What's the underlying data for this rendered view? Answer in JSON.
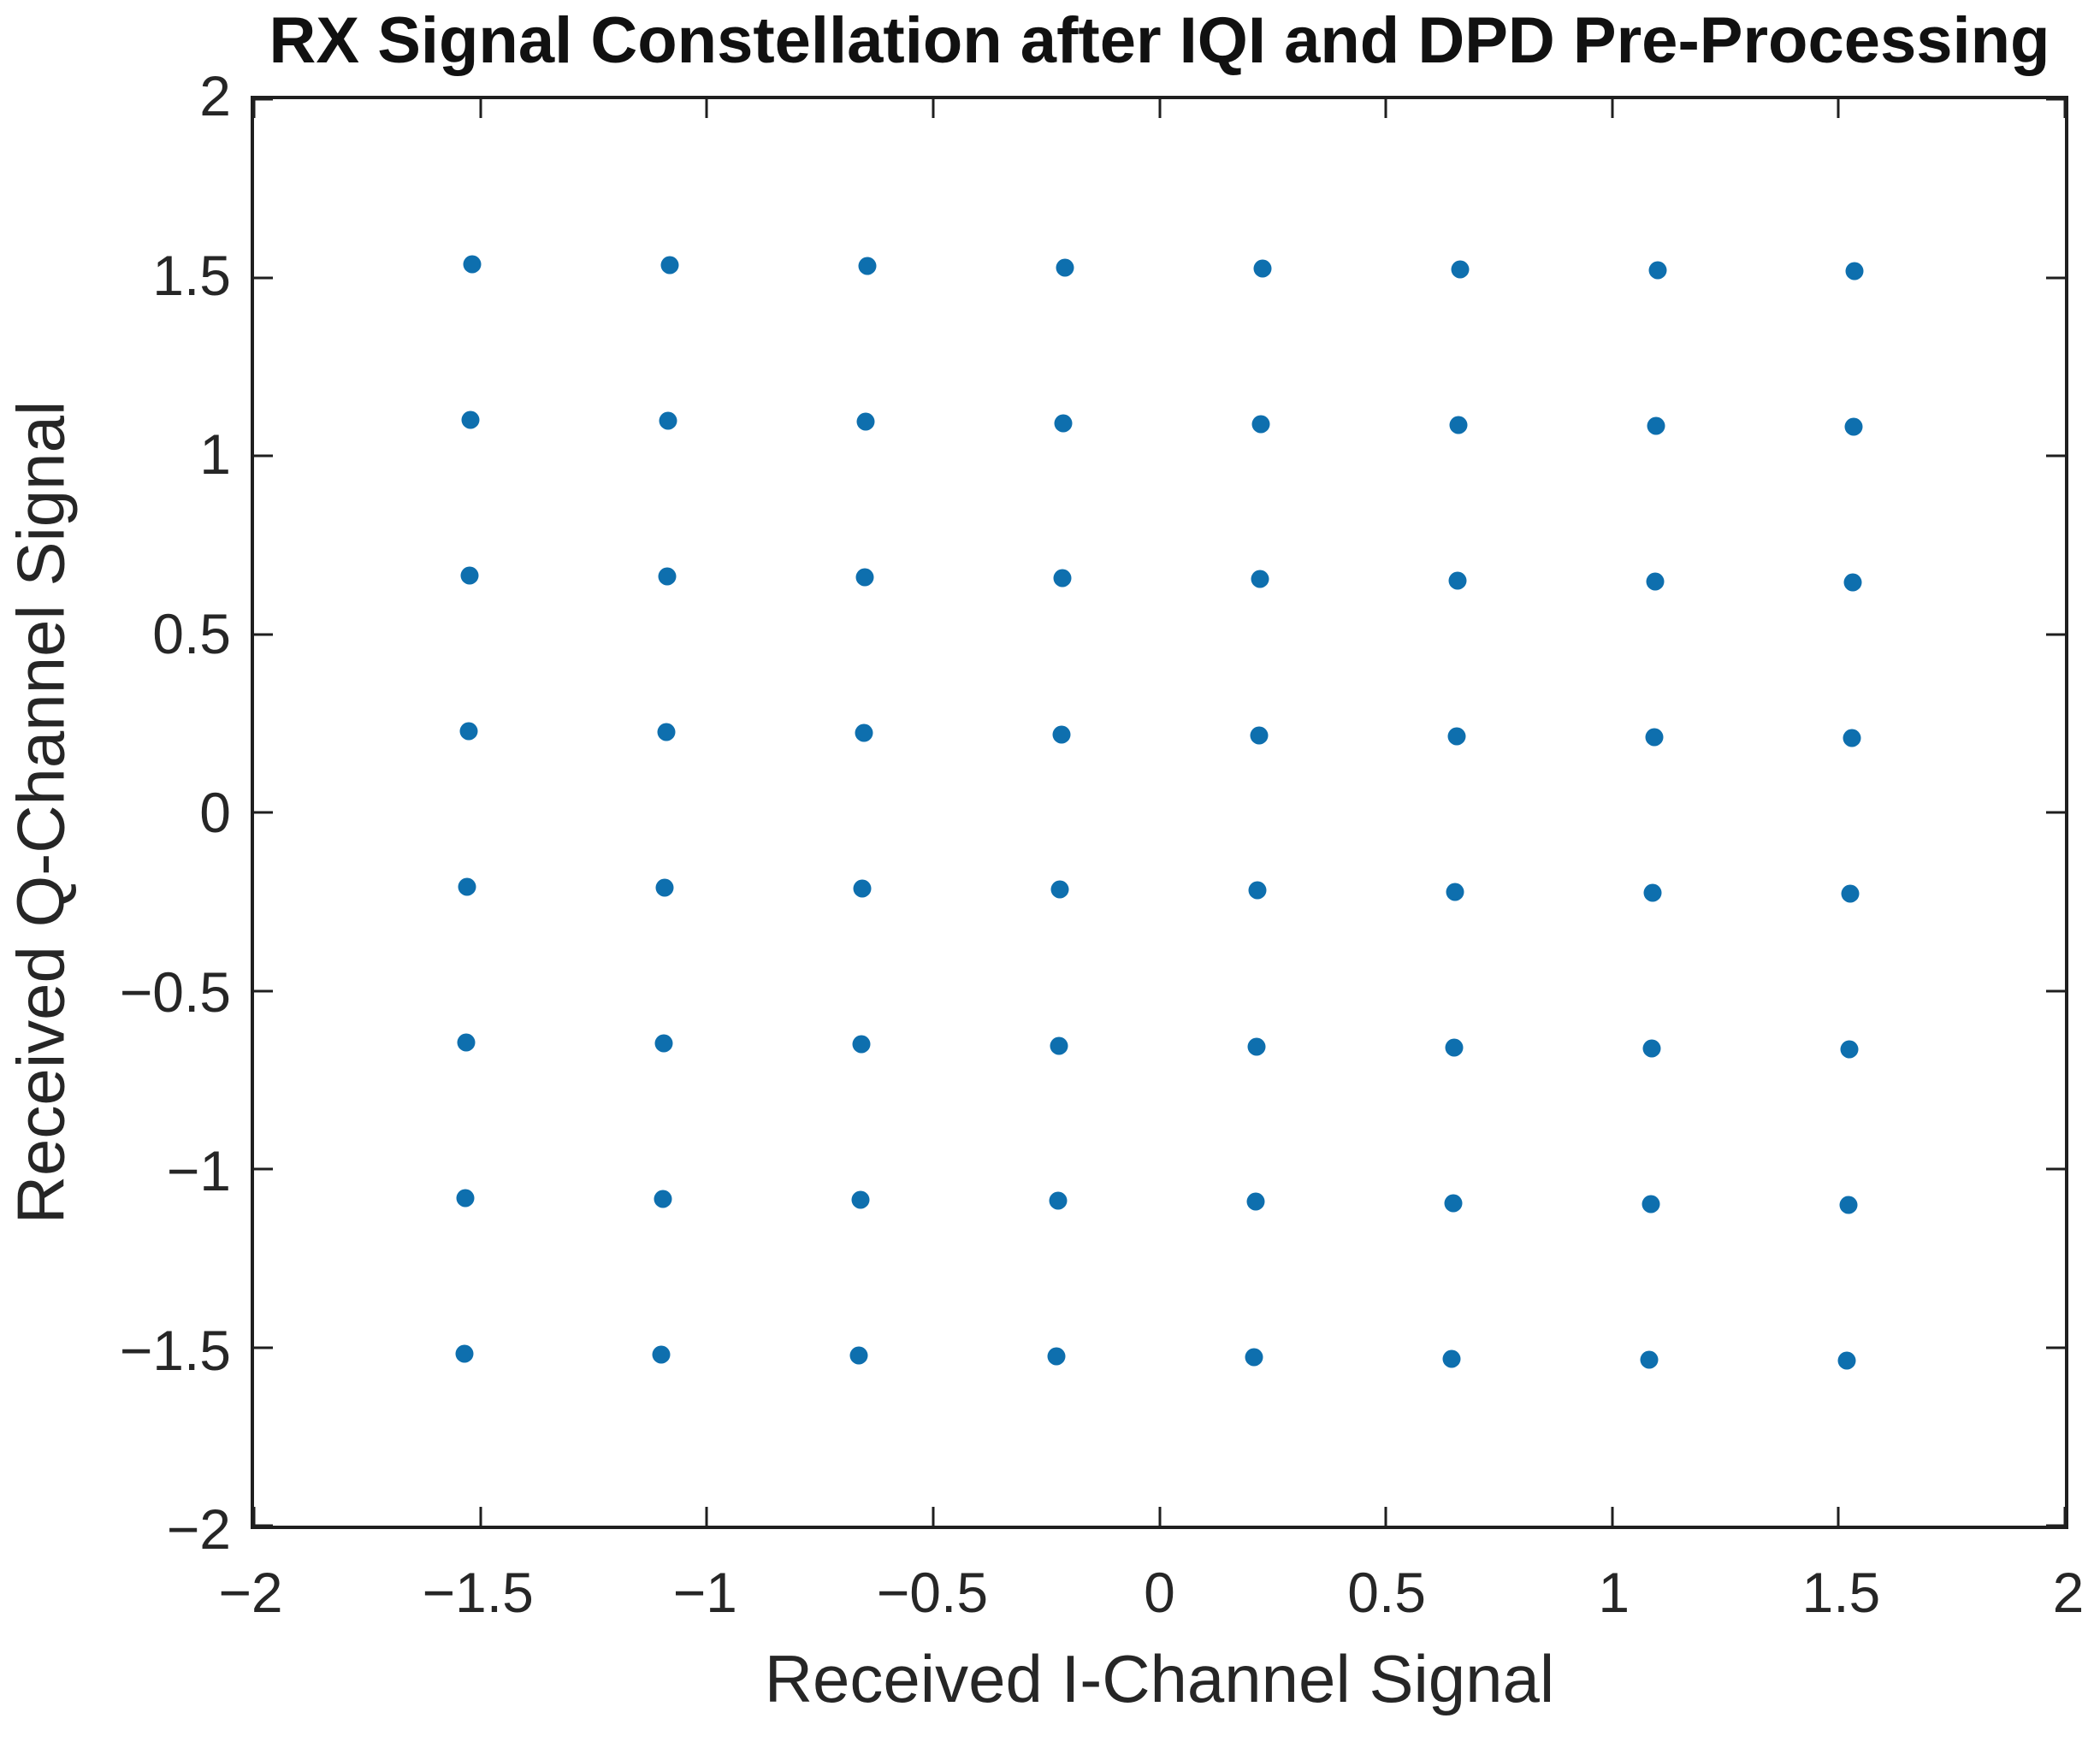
{
  "chart_data": {
    "type": "scatter",
    "title": "RX Signal Constellation after IQI and DPD Pre-Processing",
    "xlabel": "Received I-Channel Signal",
    "ylabel": "Received Q-Channel Signal",
    "xlim": [
      -2,
      2
    ],
    "ylim": [
      -2,
      2
    ],
    "grid": false,
    "legend": "none",
    "marker_color": "#0E6FAE",
    "marker_shape": "filled-dot",
    "constellation": "64-QAM, 8x8 grid, ideal levels ±0.218, ±0.655, ±1.091, ±1.527 with ~0.32° residual clockwise rotation",
    "xticks": {
      "values": [
        -2,
        -1.5,
        -1,
        -0.5,
        0,
        0.5,
        1,
        1.5,
        2
      ],
      "labels": [
        "−2",
        "−1.5",
        "−1",
        "−0.5",
        "0",
        "0.5",
        "1",
        "1.5",
        "2"
      ]
    },
    "yticks": {
      "values": [
        -2,
        -1.5,
        -1,
        -0.5,
        0,
        0.5,
        1,
        1.5,
        2
      ],
      "labels": [
        "−2",
        "−1.5",
        "−1",
        "−0.5",
        "0",
        "0.5",
        "1",
        "1.5",
        "2"
      ]
    },
    "points": [
      [
        -1.5189,
        1.5361
      ],
      [
        -1.0825,
        1.5336
      ],
      [
        -0.6461,
        1.5312
      ],
      [
        -0.2096,
        1.5287
      ],
      [
        0.2268,
        1.5263
      ],
      [
        0.6633,
        1.5238
      ],
      [
        1.0997,
        1.5214
      ],
      [
        1.5361,
        1.5189
      ],
      [
        -1.5214,
        1.0997
      ],
      [
        -1.085,
        1.0972
      ],
      [
        -0.6486,
        1.0948
      ],
      [
        -0.2121,
        1.0923
      ],
      [
        0.2243,
        1.0899
      ],
      [
        0.6608,
        1.0874
      ],
      [
        1.0972,
        1.085
      ],
      [
        1.5336,
        1.0825
      ],
      [
        -1.5238,
        0.6633
      ],
      [
        -1.0874,
        0.6608
      ],
      [
        -0.651,
        0.6584
      ],
      [
        -0.2145,
        0.6559
      ],
      [
        0.2219,
        0.6535
      ],
      [
        0.6584,
        0.651
      ],
      [
        1.0948,
        0.6486
      ],
      [
        1.5312,
        0.6461
      ],
      [
        -1.5263,
        0.2268
      ],
      [
        -1.0899,
        0.2243
      ],
      [
        -0.6535,
        0.2219
      ],
      [
        -0.217,
        0.2194
      ],
      [
        0.2194,
        0.217
      ],
      [
        0.6559,
        0.2145
      ],
      [
        1.0923,
        0.2121
      ],
      [
        1.5287,
        0.2096
      ],
      [
        -1.5287,
        -0.2096
      ],
      [
        -1.0923,
        -0.2121
      ],
      [
        -0.6559,
        -0.2145
      ],
      [
        -0.2194,
        -0.217
      ],
      [
        0.217,
        -0.2194
      ],
      [
        0.6535,
        -0.2219
      ],
      [
        1.0899,
        -0.2243
      ],
      [
        1.5263,
        -0.2268
      ],
      [
        -1.5312,
        -0.6461
      ],
      [
        -1.0948,
        -0.6486
      ],
      [
        -0.6584,
        -0.651
      ],
      [
        -0.2219,
        -0.6535
      ],
      [
        0.2145,
        -0.6559
      ],
      [
        0.651,
        -0.6584
      ],
      [
        1.0874,
        -0.6608
      ],
      [
        1.5238,
        -0.6633
      ],
      [
        -1.5336,
        -1.0825
      ],
      [
        -1.0972,
        -1.085
      ],
      [
        -0.6608,
        -1.0874
      ],
      [
        -0.2243,
        -1.0899
      ],
      [
        0.2121,
        -1.0923
      ],
      [
        0.6486,
        -1.0948
      ],
      [
        1.085,
        -1.0972
      ],
      [
        1.5214,
        -1.0997
      ],
      [
        -1.5361,
        -1.5189
      ],
      [
        -1.0997,
        -1.5214
      ],
      [
        -0.6633,
        -1.5238
      ],
      [
        -0.2268,
        -1.5263
      ],
      [
        0.2096,
        -1.5287
      ],
      [
        0.6461,
        -1.5312
      ],
      [
        1.0825,
        -1.5336
      ],
      [
        1.5189,
        -1.5361
      ]
    ]
  }
}
